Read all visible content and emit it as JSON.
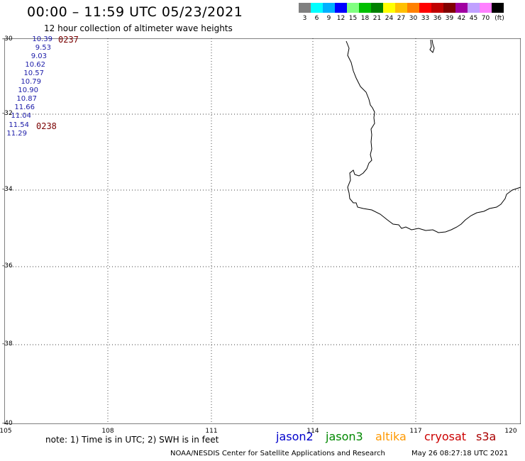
{
  "title": "00:00 – 11:59 UTC 05/23/2021",
  "subtitle": "12 hour collection of altimeter wave heights",
  "color_scale": {
    "colors": [
      "#808080",
      "#00ffff",
      "#00b0ff",
      "#0000ff",
      "#80ff80",
      "#00c000",
      "#008000",
      "#ffff00",
      "#ffc000",
      "#ff8000",
      "#ff0000",
      "#c00000",
      "#800000",
      "#a000a0",
      "#c0a0ff",
      "#ff80ff",
      "#000000"
    ],
    "labels": [
      "3",
      "6",
      "9",
      "12",
      "15",
      "18",
      "21",
      "24",
      "27",
      "30",
      "33",
      "36",
      "39",
      "42",
      "45",
      "70",
      "(ft)"
    ]
  },
  "axes": {
    "lat_labels": [
      "-30",
      "-32",
      "-34",
      "-36",
      "-38",
      "-40"
    ],
    "lon_labels": [
      "105",
      "108",
      "111",
      "114",
      "117",
      "120"
    ]
  },
  "wave_heights": [
    "10.39",
    "9.53",
    "9.03",
    "10.62",
    "10.57",
    "10.79",
    "10.90",
    "10.87",
    "11.66",
    "11.04",
    "11.54",
    "11.29"
  ],
  "pass_times": [
    "0237",
    "0238"
  ],
  "note": "note:  1) Time is in UTC; 2) SWH is in feet",
  "legend": [
    {
      "name": "jason2",
      "color": "#0000cc"
    },
    {
      "name": "jason3",
      "color": "#008800"
    },
    {
      "name": "altika",
      "color": "#ff9900"
    },
    {
      "name": "cryosat",
      "color": "#cc0000"
    },
    {
      "name": "s3a",
      "color": "#aa0000"
    }
  ],
  "footer": "NOAA/NESDIS Center for Satellite Applications and Research",
  "footer_time": "May 26 08:27:18 UTC 2021"
}
